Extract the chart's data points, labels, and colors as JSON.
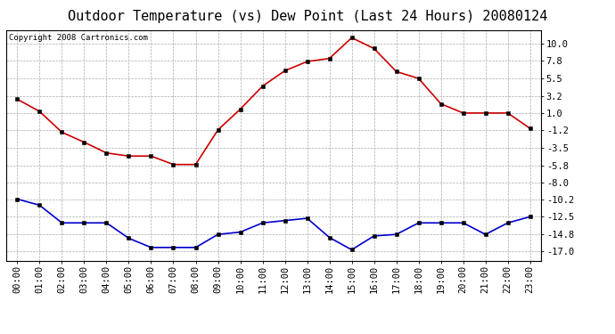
{
  "title": "Outdoor Temperature (vs) Dew Point (Last 24 Hours) 20080124",
  "copyright": "Copyright 2008 Cartronics.com",
  "x_labels": [
    "00:00",
    "01:00",
    "02:00",
    "03:00",
    "04:00",
    "05:00",
    "06:00",
    "07:00",
    "08:00",
    "09:00",
    "10:00",
    "11:00",
    "12:00",
    "13:00",
    "14:00",
    "15:00",
    "16:00",
    "17:00",
    "18:00",
    "19:00",
    "20:00",
    "21:00",
    "22:00",
    "23:00"
  ],
  "temp_data": [
    2.8,
    1.2,
    -1.5,
    -2.8,
    -4.2,
    -4.6,
    -4.6,
    -5.7,
    -5.7,
    -1.2,
    1.5,
    4.5,
    6.5,
    7.7,
    8.1,
    10.8,
    9.4,
    6.4,
    5.5,
    2.2,
    1.0,
    1.0,
    1.0,
    -1.0
  ],
  "dew_data": [
    -10.2,
    -11.0,
    -13.3,
    -13.3,
    -13.3,
    -15.3,
    -16.5,
    -16.5,
    -16.5,
    -14.8,
    -14.5,
    -13.3,
    -13.0,
    -12.7,
    -15.2,
    -16.8,
    -15.0,
    -14.8,
    -13.3,
    -13.3,
    -13.3,
    -14.8,
    -13.3,
    -12.5
  ],
  "yticks": [
    10.0,
    7.8,
    5.5,
    3.2,
    1.0,
    -1.2,
    -3.5,
    -5.8,
    -8.0,
    -10.2,
    -12.5,
    -14.8,
    -17.0
  ],
  "ylim_min": -18.2,
  "ylim_max": 11.8,
  "temp_color": "#cc0000",
  "dew_color": "#0000cc",
  "grid_color": "#aaaaaa",
  "bg_color": "#ffffff",
  "title_fontsize": 11,
  "tick_fontsize": 7.5,
  "copyright_fontsize": 6.5
}
